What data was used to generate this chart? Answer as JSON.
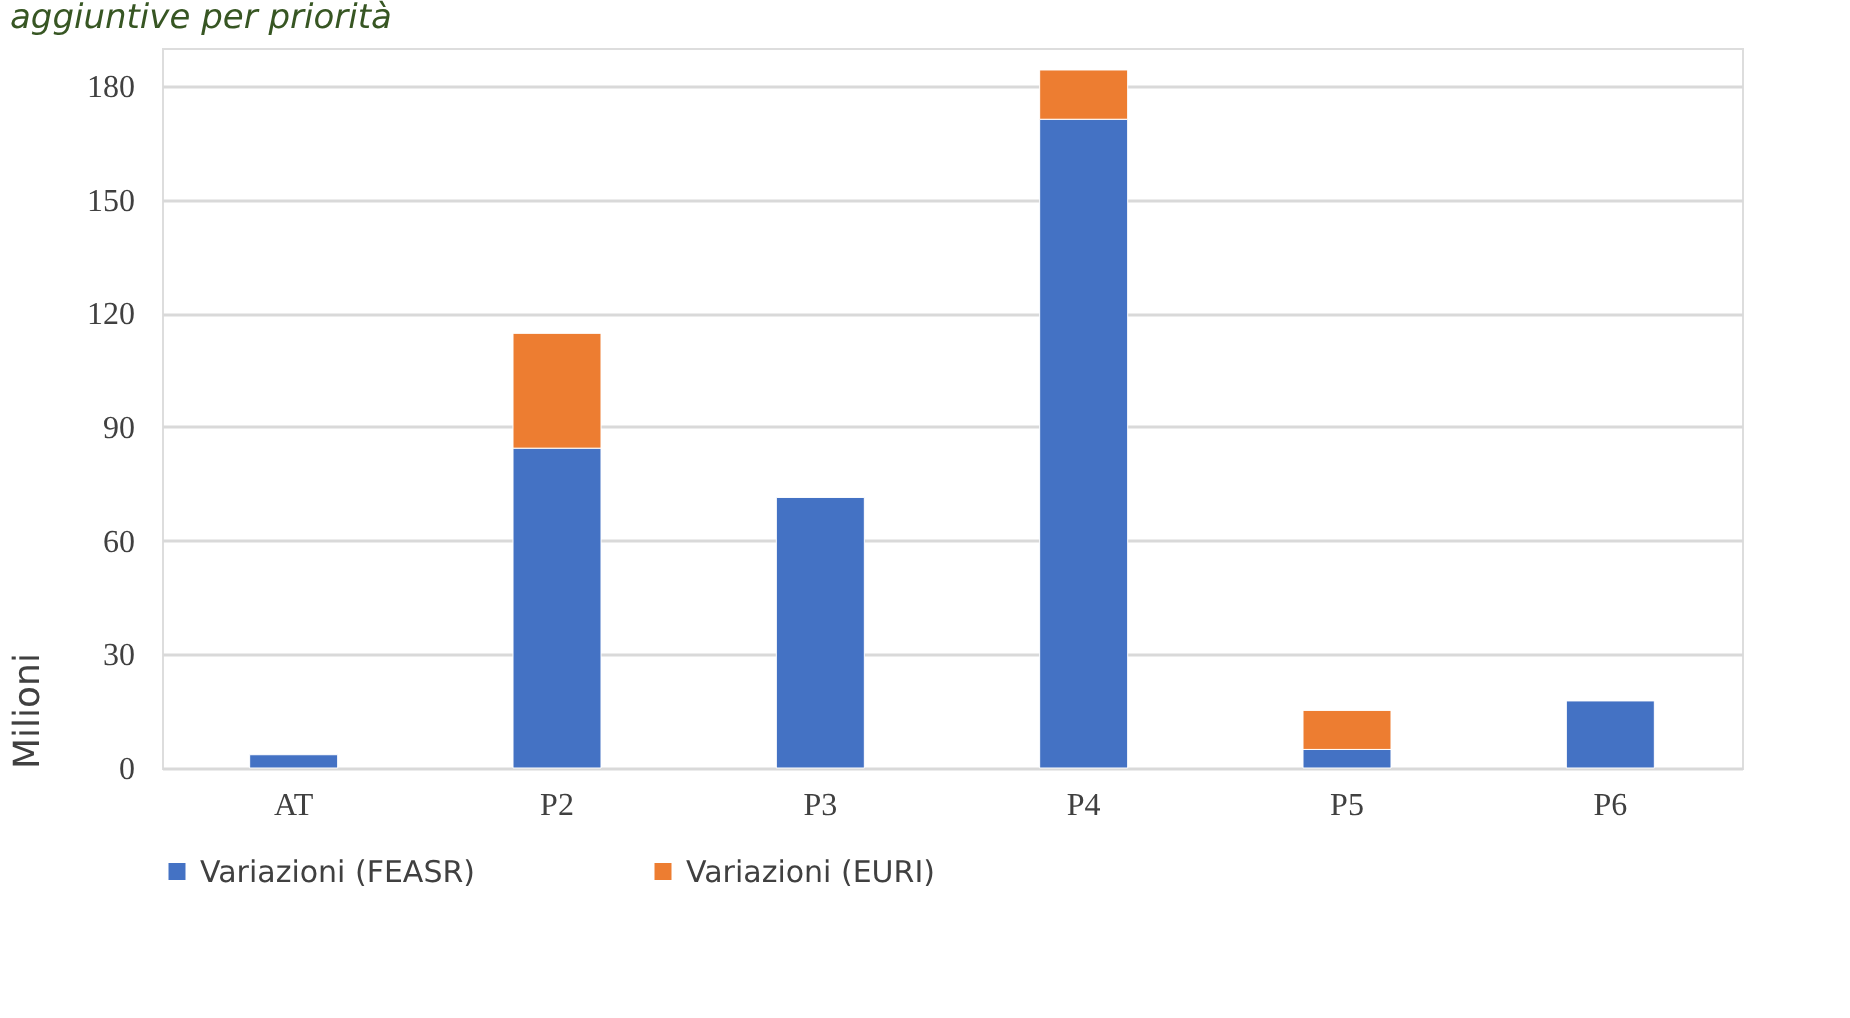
{
  "chart_data": {
    "type": "bar",
    "title": "aggiuntive per priorità",
    "ylabel": "Milioni",
    "categories": [
      "AT",
      "P2",
      "P3",
      "P4",
      "P5",
      "P6"
    ],
    "series": [
      {
        "name": "Variazioni  (FEASR)",
        "color": "#4472c4",
        "values": [
          3.5,
          84.4,
          71.4,
          171.2,
          4.9,
          17.7
        ]
      },
      {
        "name": "Variazioni (EURI)",
        "color": "#ed7d31",
        "values": [
          null,
          30.3,
          null,
          13.0,
          10.3,
          null
        ]
      }
    ],
    "stacked": true,
    "ylim": [
      0,
      190
    ],
    "yticks": [
      0,
      30,
      60,
      90,
      120,
      150,
      180
    ],
    "grid": "y",
    "legend": "bottom"
  }
}
